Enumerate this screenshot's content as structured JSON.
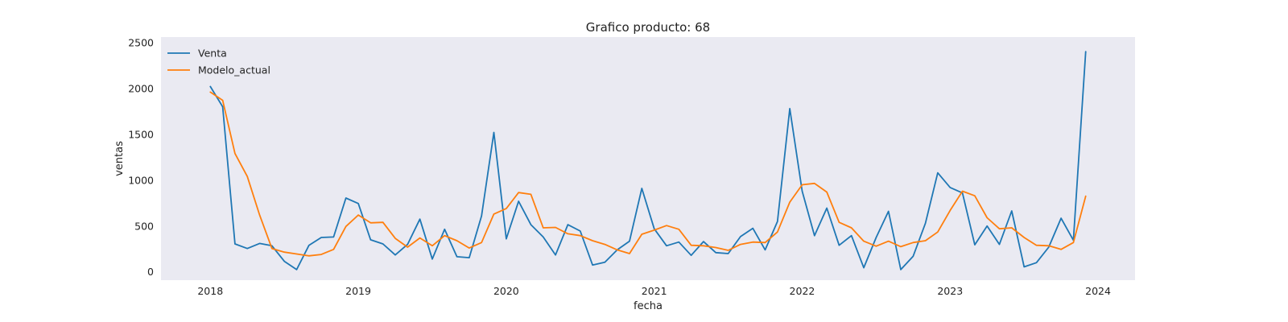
{
  "chart_data": {
    "type": "line",
    "title": "Grafico producto: 68",
    "xlabel": "fecha",
    "ylabel": "ventas",
    "x_start": "2018-01",
    "x_interval": "monthly",
    "x_ticks": [
      "2018",
      "2019",
      "2020",
      "2021",
      "2022",
      "2023",
      "2024"
    ],
    "y_ticks": [
      0,
      500,
      1000,
      1500,
      2000,
      2500
    ],
    "ylim": [
      -90,
      2560
    ],
    "xlim": [
      "2017-09",
      "2024-04"
    ],
    "grid": false,
    "legend_position": "top-left",
    "background_color": "#eaeaf2",
    "series": [
      {
        "name": "Venta",
        "color": "#1f77b4",
        "values": [
          2020,
          1800,
          305,
          255,
          310,
          285,
          115,
          25,
          290,
          375,
          380,
          805,
          745,
          350,
          305,
          185,
          300,
          575,
          140,
          465,
          165,
          155,
          610,
          1520,
          360,
          770,
          515,
          380,
          185,
          515,
          445,
          75,
          105,
          240,
          335,
          910,
          470,
          285,
          325,
          180,
          330,
          210,
          200,
          385,
          475,
          240,
          550,
          1780,
          880,
          395,
          695,
          290,
          395,
          45,
          375,
          660,
          25,
          170,
          530,
          1080,
          920,
          860,
          295,
          500,
          300,
          665,
          55,
          100,
          270,
          585,
          345,
          2400
        ]
      },
      {
        "name": "Modelo_actual",
        "color": "#ff7f0e",
        "values": [
          1960,
          1870,
          1290,
          1040,
          620,
          255,
          215,
          195,
          175,
          190,
          245,
          495,
          620,
          535,
          540,
          365,
          270,
          370,
          285,
          395,
          340,
          260,
          320,
          630,
          690,
          865,
          845,
          480,
          485,
          415,
          395,
          340,
          300,
          240,
          200,
          410,
          455,
          505,
          465,
          290,
          285,
          265,
          235,
          300,
          325,
          320,
          435,
          760,
          950,
          965,
          870,
          540,
          480,
          335,
          280,
          335,
          275,
          320,
          340,
          435,
          670,
          880,
          830,
          590,
          470,
          480,
          375,
          290,
          285,
          245,
          320,
          825
        ]
      }
    ]
  }
}
